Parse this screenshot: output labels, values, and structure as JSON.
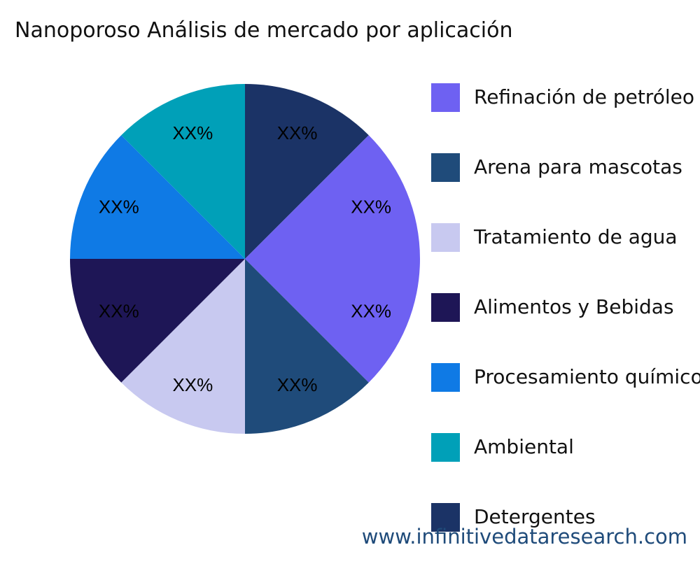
{
  "chart_data": {
    "type": "pie",
    "title": "Nanoporoso Análisis de mercado por aplicación",
    "slices": [
      {
        "label": "Detergentes",
        "value": 12.5,
        "text": "XX%",
        "color": "#1b3366"
      },
      {
        "label": "Refinación de petróleo",
        "value": 12.5,
        "text": "XX%",
        "color": "#6e61f2"
      },
      {
        "label": "Refinación de petróleo",
        "value": 12.5,
        "text": "XX%",
        "color": "#6e61f2"
      },
      {
        "label": "Arena para mascotas",
        "value": 12.5,
        "text": "XX%",
        "color": "#1f4b7a"
      },
      {
        "label": "Tratamiento de agua",
        "value": 12.5,
        "text": "XX%",
        "color": "#c8c9f0"
      },
      {
        "label": "Alimentos y Bebidas",
        "value": 12.5,
        "text": "XX%",
        "color": "#1e1656"
      },
      {
        "label": "Procesamiento químico",
        "value": 12.5,
        "text": "XX%",
        "color": "#0f7ae5"
      },
      {
        "label": "Ambiental",
        "value": 12.5,
        "text": "XX%",
        "color": "#00a0b8"
      }
    ],
    "legend": [
      {
        "label": "Refinación de petróleo",
        "color": "#6e61f2"
      },
      {
        "label": "Arena para mascotas",
        "color": "#1f4b7a"
      },
      {
        "label": "Tratamiento de agua",
        "color": "#c8c9f0"
      },
      {
        "label": "Alimentos y Bebidas",
        "color": "#1e1656"
      },
      {
        "label": "Procesamiento químico",
        "color": "#0f7ae5"
      },
      {
        "label": "Ambiental",
        "color": "#00a0b8"
      },
      {
        "label": "Detergentes",
        "color": "#1b3366"
      }
    ],
    "legend_position": "right"
  },
  "watermark": "www.infinitivedataresearch.com"
}
